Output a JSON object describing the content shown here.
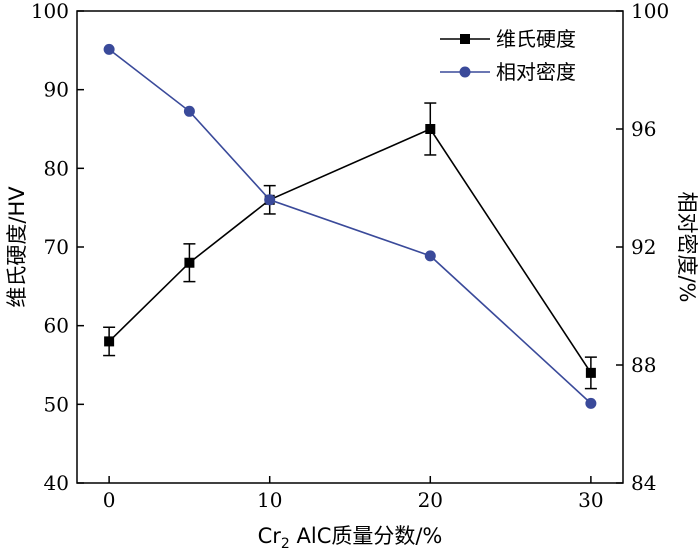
{
  "chart_data": {
    "type": "line",
    "x": [
      0,
      5,
      10,
      20,
      30
    ],
    "xlim": [
      -2,
      32
    ],
    "x_ticks": [
      0,
      10,
      20,
      30
    ],
    "xlabel_main": "Cr",
    "xlabel_sub": "2",
    "xlabel_rest": " AlC质量分数/%",
    "ylabel_left": "维氏硬度/HV",
    "ylabel_right": "相对密度/%",
    "ylim_left": [
      40,
      100
    ],
    "ylim_right": [
      84,
      100
    ],
    "y_ticks_left": [
      40,
      50,
      60,
      70,
      80,
      90,
      100
    ],
    "y_ticks_right": [
      84,
      88,
      92,
      96,
      100
    ],
    "legend_position": "top-right",
    "series": [
      {
        "name": "维氏硬度",
        "axis": "left",
        "marker": "square",
        "color": "#000000",
        "values": [
          58,
          68,
          76,
          85,
          54
        ],
        "errors": [
          1.8,
          2.4,
          1.8,
          3.3,
          2.0
        ]
      },
      {
        "name": "相对密度",
        "axis": "right",
        "marker": "circle",
        "color": "#3a4a9a",
        "values": [
          98.7,
          96.6,
          93.6,
          91.7,
          86.7
        ]
      }
    ]
  }
}
